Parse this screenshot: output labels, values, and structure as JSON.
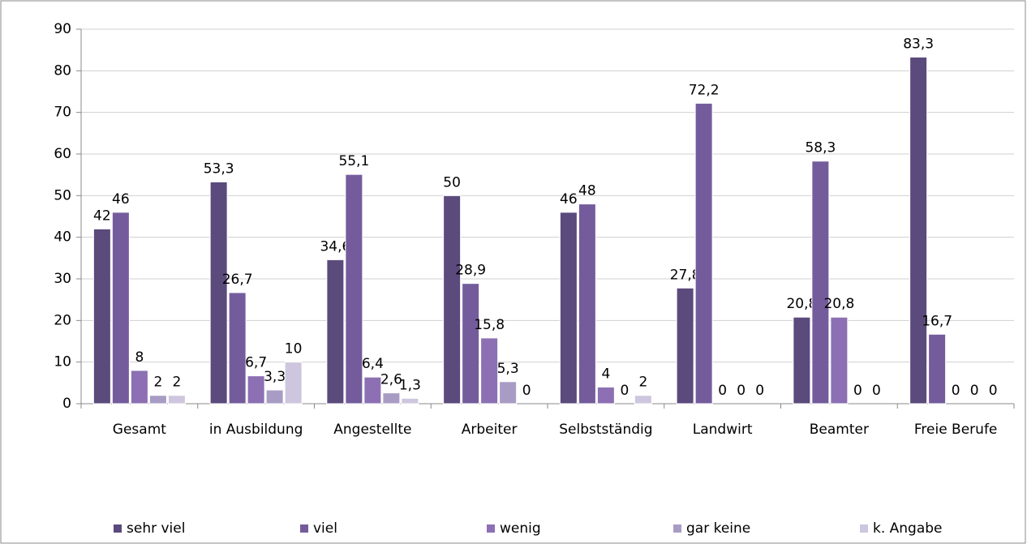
{
  "chart_data": {
    "type": "bar",
    "categories": [
      "Gesamt",
      "in Ausbildung",
      "Angestellte",
      "Arbeiter",
      "Selbstständig",
      "Landwirt",
      "Beamter",
      "Freie Berufe"
    ],
    "series": [
      {
        "name": "sehr viel",
        "color": "#5b4a7c",
        "values": [
          42,
          53.3,
          34.6,
          50,
          46,
          27.8,
          20.8,
          83.3
        ],
        "value_labels": [
          "42",
          "53,3",
          "34,6",
          "50",
          "46",
          "27,8",
          "20,8",
          "83,3"
        ]
      },
      {
        "name": "viel",
        "color": "#745c9c",
        "values": [
          46,
          26.7,
          55.1,
          28.9,
          48,
          72.2,
          58.3,
          16.7
        ],
        "value_labels": [
          "46",
          "26,7",
          "55,1",
          "28,9",
          "48",
          "72,2",
          "58,3",
          "16,7"
        ]
      },
      {
        "name": "wenig",
        "color": "#8c70b3",
        "values": [
          8,
          6.7,
          6.4,
          15.8,
          4,
          0,
          20.8,
          0
        ],
        "value_labels": [
          "8",
          "6,7",
          "6,4",
          "15,8",
          "4",
          "0",
          "20,8",
          "0"
        ]
      },
      {
        "name": "gar keine",
        "color": "#a99cc4",
        "values": [
          2,
          3.3,
          2.6,
          5.3,
          0,
          0,
          0,
          0
        ],
        "value_labels": [
          "2",
          "3,3",
          "2,6",
          "5,3",
          "0",
          "0",
          "0",
          "0"
        ]
      },
      {
        "name": "k. Angabe",
        "color": "#cec6de",
        "values": [
          2,
          10,
          1.3,
          0,
          2,
          0,
          0,
          0
        ],
        "value_labels": [
          "2",
          "10",
          "1,3",
          "0",
          "2",
          "0",
          "0",
          "0"
        ]
      }
    ],
    "ylim": [
      0,
      90
    ],
    "yticks": [
      0,
      10,
      20,
      30,
      40,
      50,
      60,
      70,
      80,
      90
    ],
    "grid": true,
    "legend": "bottom"
  }
}
